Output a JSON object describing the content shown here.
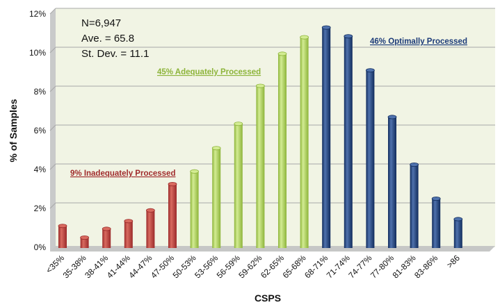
{
  "chart_data": {
    "type": "bar",
    "xlabel": "CSPS",
    "ylabel": "% of Samples",
    "ylim": [
      0,
      12
    ],
    "yticks": [
      0,
      2,
      4,
      6,
      8,
      10,
      12
    ],
    "ytick_suffix": "%",
    "grid": true,
    "categories": [
      "<35%",
      "35-38%",
      "38-41%",
      "41-44%",
      "44-47%",
      "47-50%",
      "50-53%",
      "53-56%",
      "56-59%",
      "59-62%",
      "62-65%",
      "65-68%",
      "68-71%",
      "71-74%",
      "74-77%",
      "77-80%",
      "81-83%",
      "83-86%",
      ">86"
    ],
    "values": [
      1.1,
      0.5,
      0.95,
      1.35,
      1.9,
      3.25,
      3.9,
      5.1,
      6.35,
      8.3,
      9.95,
      10.8,
      11.3,
      10.85,
      9.1,
      6.7,
      4.25,
      2.5,
      1.45
    ],
    "groups": [
      {
        "label": "9% Inadequately Processed",
        "start": 0,
        "end": 5,
        "color": "#9b2a2a",
        "highlight": "#d86a5f",
        "text_color": "#a02c2c"
      },
      {
        "label": "45% Adequately Processed",
        "start": 6,
        "end": 11,
        "color": "#8db43a",
        "highlight": "#d3ec93",
        "text_color": "#8db43a"
      },
      {
        "label": "46% Optimally Processed",
        "start": 12,
        "end": 18,
        "color": "#112c5c",
        "highlight": "#4f72ad",
        "text_color": "#1b3a78"
      }
    ],
    "annotations": {
      "n": "N=6,947",
      "ave": "Ave. = 65.8",
      "stdev": "St. Dev. = 11.1"
    },
    "colors": {
      "plot_background": "#f1f4e4",
      "wall": "#c9caca",
      "floor": "#c6c7c6",
      "gridline": "#a8a8a8"
    }
  }
}
